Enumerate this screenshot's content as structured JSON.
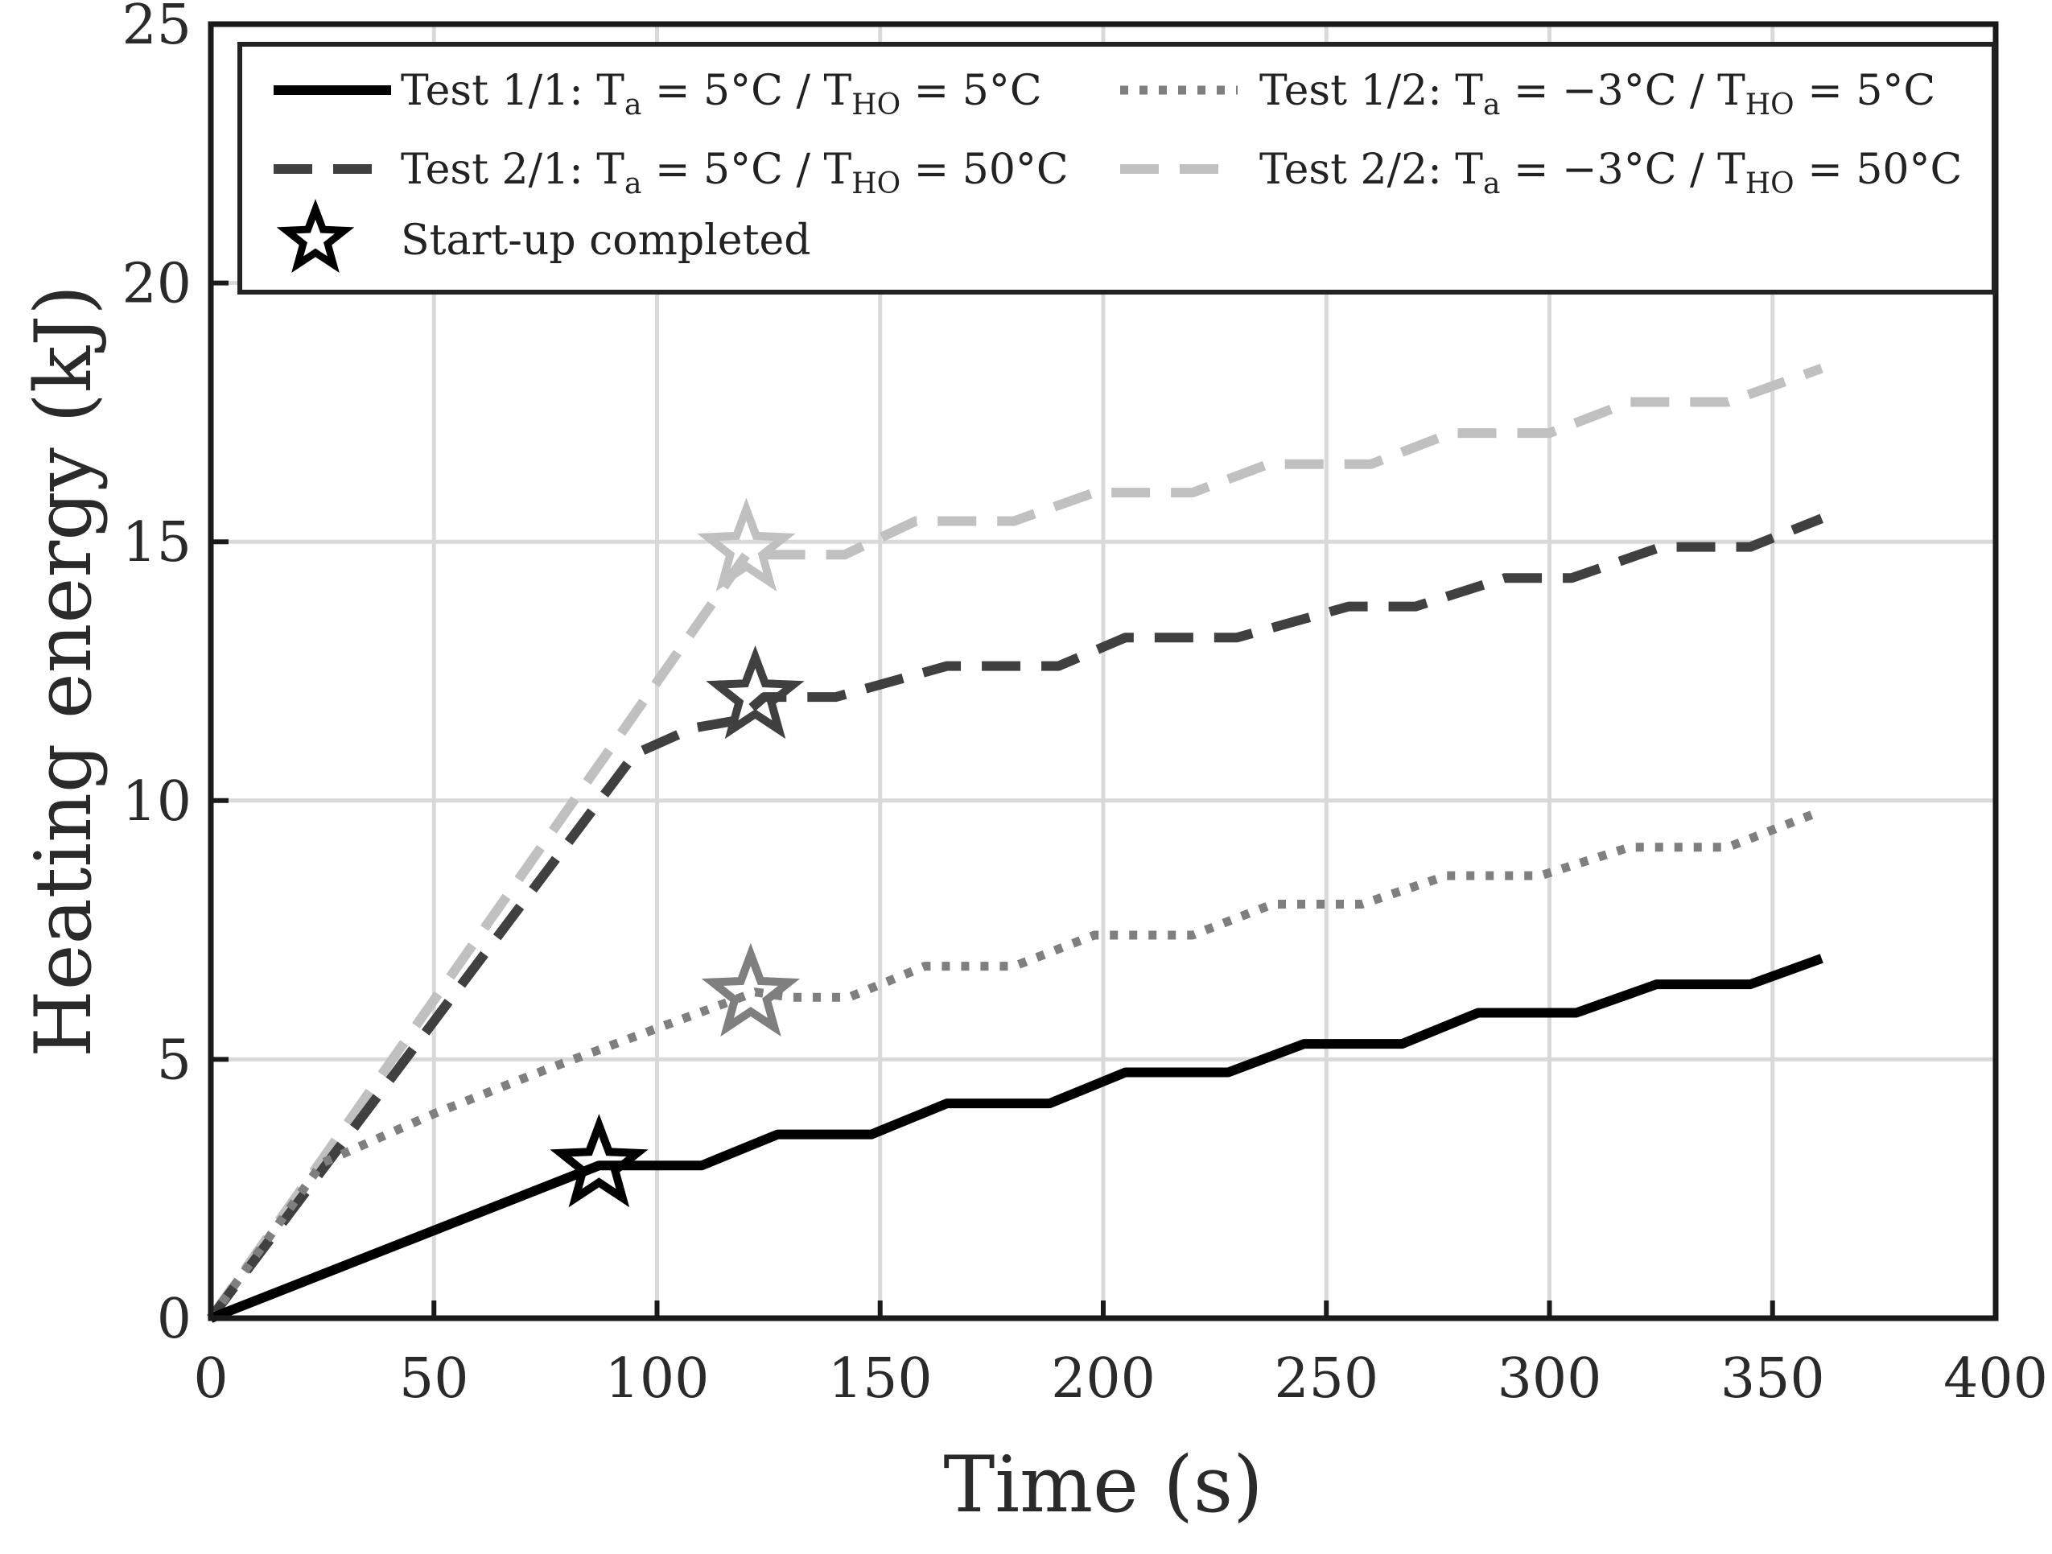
{
  "chart_data": {
    "type": "line",
    "title": "",
    "xlabel": "Time (s)",
    "ylabel": "Heating energy (kJ)",
    "xlim": [
      0,
      400
    ],
    "ylim": [
      0,
      25
    ],
    "xticks": [
      0,
      50,
      100,
      150,
      200,
      250,
      300,
      350,
      400
    ],
    "yticks": [
      0,
      5,
      10,
      15,
      20,
      25
    ],
    "grid": true,
    "legend_position": "top",
    "series": [
      {
        "id": "s11",
        "legend_label": "Test 1/1: Tₐ = 5°C / T_HO = 5°C",
        "legend_parts": [
          "Test 1/1: T",
          "a",
          " = 5°C / T",
          "HO",
          " = 5°C"
        ],
        "style": "solid",
        "color": "#000000",
        "points": [
          [
            0,
            0
          ],
          [
            87,
            2.95
          ],
          [
            110,
            2.95
          ],
          [
            127,
            3.55
          ],
          [
            148,
            3.55
          ],
          [
            165,
            4.15
          ],
          [
            188,
            4.15
          ],
          [
            205,
            4.75
          ],
          [
            228,
            4.75
          ],
          [
            245,
            5.3
          ],
          [
            267,
            5.3
          ],
          [
            284,
            5.9
          ],
          [
            306,
            5.9
          ],
          [
            324,
            6.45
          ],
          [
            345,
            6.45
          ],
          [
            361,
            6.95
          ]
        ]
      },
      {
        "id": "s12",
        "legend_label": "Test 1/2: Tₐ = −3°C / T_HO = 5°C",
        "legend_parts": [
          "Test 1/2: T",
          "a",
          " = −3°C / T",
          "HO",
          " = 5°C"
        ],
        "style": "dotted",
        "color": "#7f7f7f",
        "points": [
          [
            0,
            0
          ],
          [
            25,
            3.0
          ],
          [
            50,
            3.95
          ],
          [
            75,
            4.8
          ],
          [
            100,
            5.6
          ],
          [
            122,
            6.3
          ],
          [
            130,
            6.2
          ],
          [
            143,
            6.2
          ],
          [
            160,
            6.8
          ],
          [
            180,
            6.8
          ],
          [
            198,
            7.4
          ],
          [
            220,
            7.4
          ],
          [
            238,
            8.0
          ],
          [
            258,
            8.0
          ],
          [
            277,
            8.55
          ],
          [
            298,
            8.55
          ],
          [
            318,
            9.1
          ],
          [
            340,
            9.1
          ],
          [
            361,
            9.8
          ]
        ]
      },
      {
        "id": "s21",
        "legend_label": "Test 2/1: Tₐ = 5°C / T_HO = 50°C",
        "legend_parts": [
          "Test 2/1: T",
          "a",
          " = 5°C / T",
          "HO",
          " = 50°C"
        ],
        "style": "dashed",
        "color": "#404040",
        "points": [
          [
            0,
            0
          ],
          [
            95,
            10.9
          ],
          [
            108,
            11.4
          ],
          [
            118,
            11.55
          ],
          [
            124,
            12.0
          ],
          [
            140,
            12.0
          ],
          [
            165,
            12.6
          ],
          [
            190,
            12.6
          ],
          [
            205,
            13.15
          ],
          [
            230,
            13.15
          ],
          [
            255,
            13.75
          ],
          [
            270,
            13.75
          ],
          [
            290,
            14.3
          ],
          [
            305,
            14.3
          ],
          [
            325,
            14.9
          ],
          [
            345,
            14.9
          ],
          [
            361,
            15.45
          ]
        ]
      },
      {
        "id": "s22",
        "legend_label": "Test 2/2: Tₐ = −3°C / T_HO = 50°C",
        "legend_parts": [
          "Test 2/2: T",
          "a",
          " = −3°C / T",
          "HO",
          " = 50°C"
        ],
        "style": "dashed",
        "color": "#c0c0c0",
        "points": [
          [
            0,
            0
          ],
          [
            120,
            14.75
          ],
          [
            142,
            14.75
          ],
          [
            158,
            15.4
          ],
          [
            180,
            15.4
          ],
          [
            198,
            15.95
          ],
          [
            220,
            15.95
          ],
          [
            237,
            16.5
          ],
          [
            260,
            16.5
          ],
          [
            278,
            17.1
          ],
          [
            300,
            17.1
          ],
          [
            318,
            17.7
          ],
          [
            340,
            17.7
          ],
          [
            361,
            18.35
          ]
        ]
      }
    ],
    "markers": {
      "legend_label": "Start-up completed",
      "symbol": "star",
      "points": [
        {
          "series": "s11",
          "x": 87,
          "y": 2.95,
          "color": "#000000"
        },
        {
          "series": "s12",
          "x": 121,
          "y": 6.25,
          "color": "#7f7f7f"
        },
        {
          "series": "s21",
          "x": 122,
          "y": 12.0,
          "color": "#404040"
        },
        {
          "series": "s22",
          "x": 120,
          "y": 14.85,
          "color": "#c0c0c0"
        }
      ]
    }
  }
}
